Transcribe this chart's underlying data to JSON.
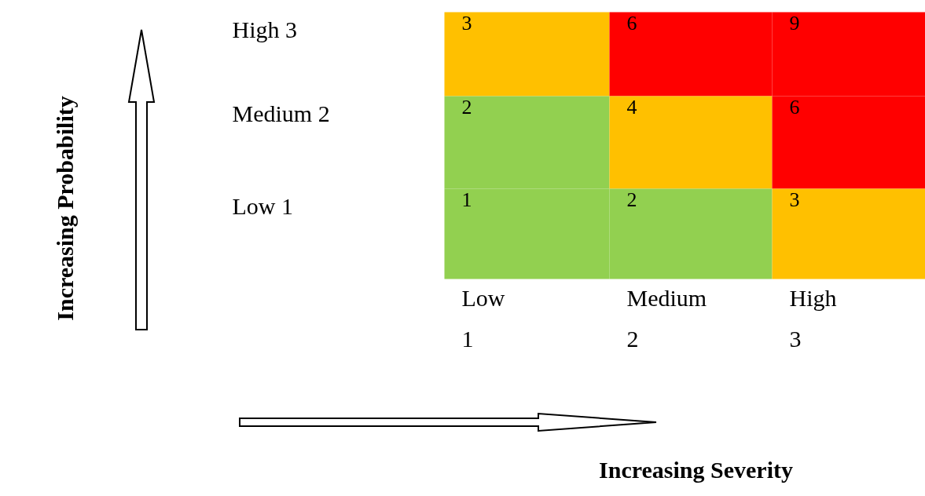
{
  "chart_data": {
    "type": "heatmap",
    "xlabel": "Increasing Severity",
    "annotations": [
      "Increasing Probability"
    ],
    "categories": [
      "Low\n1",
      "Medium\n2",
      "High\n3"
    ],
    "y_categories": [
      "High 3",
      "Medium 2",
      "Low 1"
    ],
    "cells": [
      [
        3,
        6,
        9
      ],
      [
        2,
        4,
        6
      ],
      [
        1,
        2,
        3
      ]
    ],
    "colors": [
      [
        "#ffc000",
        "#ff0000",
        "#ff0000"
      ],
      [
        "#92d050",
        "#ffc000",
        "#ff0000"
      ],
      [
        "#92d050",
        "#92d050",
        "#ffc000"
      ]
    ],
    "data_labels": true
  }
}
